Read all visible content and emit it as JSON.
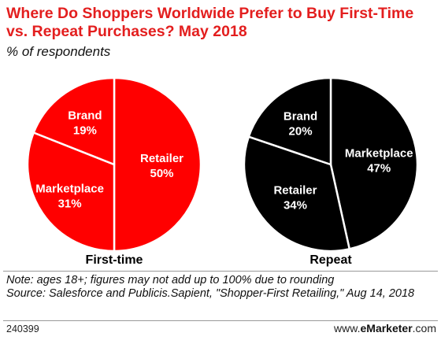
{
  "header": {
    "title": "Where Do Shoppers Worldwide Prefer to Buy First-Time vs. Repeat Purchases? May 2018",
    "subtitle": "% of respondents"
  },
  "chart_data": {
    "type": "pie",
    "pies": [
      {
        "name": "First-time",
        "color": "#ff0000",
        "slices": [
          {
            "label": "Retailer",
            "value": 50
          },
          {
            "label": "Marketplace",
            "value": 31
          },
          {
            "label": "Brand",
            "value": 19
          }
        ]
      },
      {
        "name": "Repeat",
        "color": "#000000",
        "slices": [
          {
            "label": "Marketplace",
            "value": 47
          },
          {
            "label": "Retailer",
            "value": 34
          },
          {
            "label": "Brand",
            "value": 20
          }
        ]
      }
    ]
  },
  "footer": {
    "note": "Note: ages 18+; figures may not add up to 100% due to rounding",
    "source": "Source: Salesforce and Publicis.Sapient, \"Shopper-First Retailing,\" Aug 14, 2018",
    "chart_id": "240399",
    "brand_prefix": "www.",
    "brand_name": "eMarketer",
    "brand_suffix": ".com"
  }
}
